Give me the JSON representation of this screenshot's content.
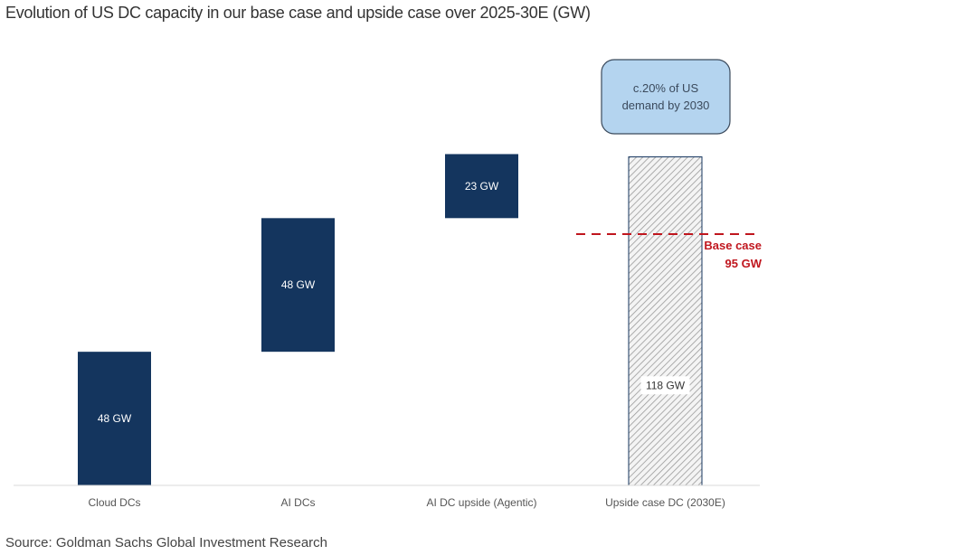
{
  "chart_data": {
    "type": "bar",
    "subtype": "waterfall",
    "title": "Evolution of US DC capacity in our base case and upside case over 2025-30E (GW)",
    "categories": [
      "Cloud DCs",
      "AI DCs",
      "AI DC upside (Agentic)",
      "Upside case DC (2030E)"
    ],
    "values": [
      48,
      48,
      23,
      118
    ],
    "bases": [
      0,
      48,
      96,
      0
    ],
    "data_labels": [
      "48 GW",
      "48 GW",
      "23 GW",
      "118 GW"
    ],
    "bar_styles": [
      "solid",
      "solid",
      "solid",
      "hatched"
    ],
    "ylim": [
      0,
      120
    ],
    "grid": false,
    "reference_line": {
      "label_line1": "Base case",
      "label_line2": "95 GW",
      "value": 95,
      "color": "#c0161e"
    },
    "callout": {
      "line1": "c.20% of US",
      "line2": "demand by 2030"
    },
    "colors": {
      "bar": "#14355e",
      "hatch": "#9a9a9a",
      "callout_fill": "#b4d4ef",
      "callout_stroke": "#3b4a5c"
    },
    "source": "Source: Goldman Sachs Global Investment Research"
  }
}
